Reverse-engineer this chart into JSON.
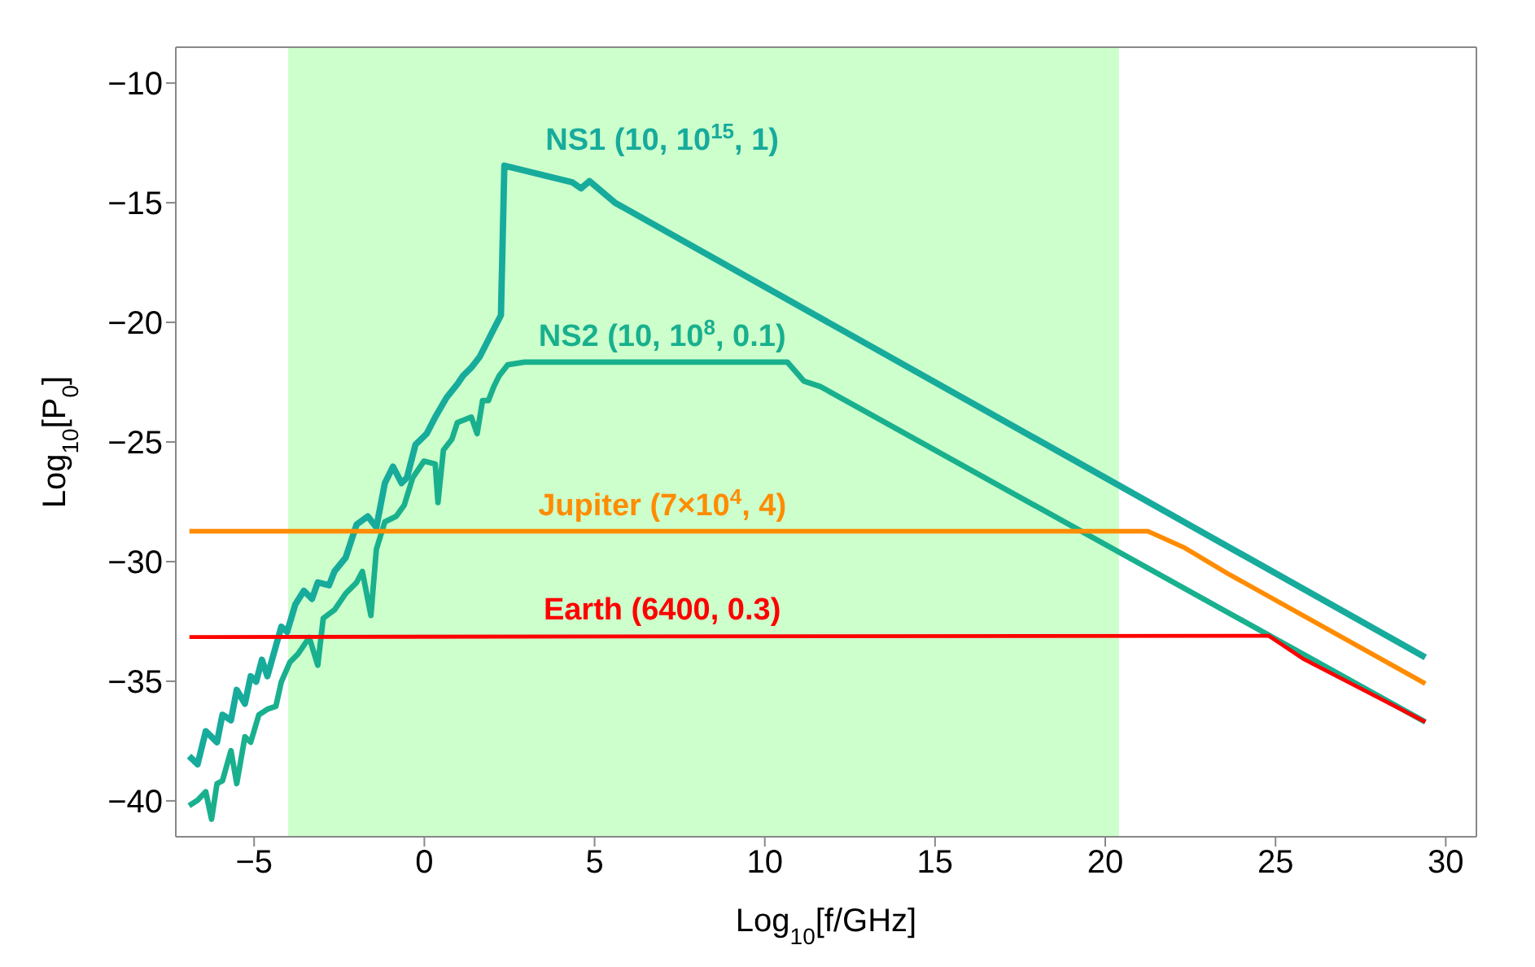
{
  "chart_data": {
    "type": "line",
    "xlabel": "Log$_{10}$[f/GHz]",
    "ylabel": "Log$_{10}$[P$_{0}$]",
    "xlim": [
      -7.3,
      30.9
    ],
    "ylim": [
      -41.5,
      -8.5
    ],
    "xticks": [
      -5,
      0,
      5,
      10,
      15,
      20,
      25,
      30
    ],
    "yticks": [
      -40,
      -35,
      -30,
      -25,
      -20,
      -15,
      -10
    ],
    "grid": false,
    "legend": false,
    "marker": "none",
    "line_style": "solid",
    "bands": [
      {
        "axis": "x",
        "from": -4,
        "to": 20.4,
        "color": "#ccffcc"
      }
    ],
    "series": [
      {
        "name": "NS1 (10, 10$^{15}$, 1)",
        "color": "#17ab9c",
        "x": [
          -6.91,
          -6.66,
          -6.42,
          -6.09,
          -5.93,
          -5.68,
          -5.51,
          -5.27,
          -5.1,
          -4.94,
          -4.77,
          -4.61,
          -4.45,
          -4.2,
          -4.03,
          -3.79,
          -3.54,
          -3.3,
          -3.13,
          -2.8,
          -2.64,
          -2.31,
          -1.99,
          -1.66,
          -1.41,
          -1.16,
          -0.92,
          -0.67,
          -0.51,
          -0.26,
          0.07,
          0.32,
          0.65,
          0.97,
          1.14,
          1.38,
          1.63,
          1.88,
          2.04,
          2.25,
          2.35,
          4.35,
          4.6,
          4.85,
          5.6,
          29.4
        ],
        "values": [
          -38.13,
          -38.47,
          -37.09,
          -37.55,
          -36.4,
          -36.63,
          -35.36,
          -35.94,
          -34.79,
          -35.02,
          -34.1,
          -34.79,
          -33.98,
          -32.72,
          -32.94,
          -31.79,
          -31.22,
          -31.56,
          -30.87,
          -30.99,
          -30.41,
          -29.83,
          -28.45,
          -28.11,
          -28.57,
          -26.72,
          -26.03,
          -26.72,
          -26.49,
          -25.11,
          -24.65,
          -23.96,
          -23.15,
          -22.58,
          -22.23,
          -21.89,
          -21.43,
          -20.73,
          -20.28,
          -19.7,
          -13.45,
          -14.15,
          -14.4,
          -14.1,
          -15.0,
          -34.0
        ]
      },
      {
        "name": "NS2 (10, 10$^{8}$, 0.1)",
        "color": "#19b08e",
        "x": [
          -6.91,
          -6.66,
          -6.42,
          -6.25,
          -6.09,
          -5.93,
          -5.68,
          -5.51,
          -5.27,
          -5.1,
          -4.86,
          -4.61,
          -4.36,
          -4.2,
          -3.95,
          -3.71,
          -3.38,
          -3.13,
          -2.97,
          -2.64,
          -2.31,
          -1.99,
          -1.82,
          -1.57,
          -1.41,
          -1.16,
          -0.83,
          -0.59,
          -0.34,
          -0.01,
          0.32,
          0.4,
          0.56,
          0.81,
          0.97,
          1.38,
          1.55,
          1.71,
          1.88,
          2.04,
          2.2,
          2.45,
          2.94,
          10.66,
          11.15,
          11.64,
          29.4
        ],
        "values": [
          -40.2,
          -39.97,
          -39.62,
          -40.77,
          -39.28,
          -39.16,
          -37.9,
          -39.28,
          -37.32,
          -37.55,
          -36.4,
          -36.17,
          -36.05,
          -35.02,
          -34.21,
          -33.86,
          -33.17,
          -34.33,
          -32.37,
          -32.02,
          -31.33,
          -30.87,
          -30.41,
          -32.25,
          -29.49,
          -28.34,
          -28.11,
          -27.64,
          -26.49,
          -25.8,
          -25.92,
          -27.53,
          -25.34,
          -24.88,
          -24.19,
          -23.96,
          -24.65,
          -23.27,
          -23.27,
          -22.69,
          -22.23,
          -21.77,
          -21.66,
          -21.66,
          -22.46,
          -22.69,
          -36.7
        ]
      },
      {
        "name": "Jupiter (7×10$^{4}$, 4)",
        "color": "#ff8c00",
        "x": [
          -6.9,
          21.25,
          22.3,
          23.6,
          29.4
        ],
        "values": [
          -28.73,
          -28.73,
          -29.4,
          -30.5,
          -35.1
        ]
      },
      {
        "name": "Earth (6400, 0.3)",
        "color": "#ff0000",
        "x": [
          -6.9,
          24.8,
          25.8,
          29.4
        ],
        "values": [
          -33.15,
          -33.1,
          -34.05,
          -36.7
        ]
      }
    ]
  }
}
